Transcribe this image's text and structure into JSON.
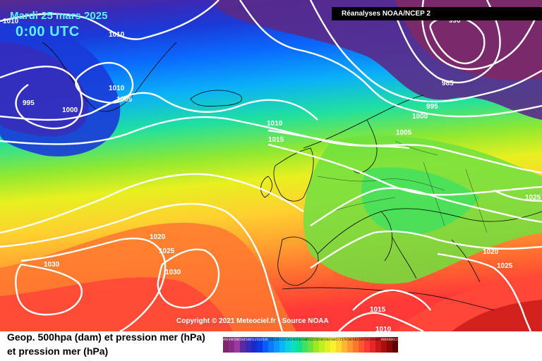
{
  "header": {
    "date": "Mardi 25 mars 2025",
    "time": "0:00 UTC",
    "source_banner": "Réanalyses NOAA/NCEP 2"
  },
  "footer": {
    "copyright": "Copyright © 2021 Meteociel.fr - Source NOAA",
    "title_line1": "Geop. 500hpa (dam) et pression mer (hPa)",
    "title_line2": "et pression mer (hPa)"
  },
  "isobar_labels": [
    "1010",
    "1010",
    "995",
    "1000",
    "1010",
    "1005",
    "990",
    "985",
    "995",
    "1000",
    "1010",
    "1015",
    "1005",
    "1025",
    "1020",
    "1025",
    "1030",
    "1030",
    "1020",
    "1025",
    "1015",
    "1010"
  ],
  "color_scale": {
    "labels": [
      "492",
      "496",
      "500",
      "504",
      "508",
      "512",
      "516",
      "520",
      "524",
      "528",
      "532",
      "536",
      "540",
      "544",
      "548",
      "552",
      "556",
      "560",
      "564",
      "568",
      "572",
      "576",
      "580",
      "584",
      "588",
      "592",
      "596",
      "600",
      "604",
      "608",
      "612"
    ],
    "colors": [
      "#7a2a6a",
      "#8a2a8a",
      "#9a3aa0",
      "#5a2aa0",
      "#3a2ab8",
      "#1a2ad0",
      "#0a3ae8",
      "#0a5aff",
      "#0a7aff",
      "#0a9aff",
      "#0ab8f8",
      "#0ad0e0",
      "#0ae0c0",
      "#10e090",
      "#40e060",
      "#70e040",
      "#a0e820",
      "#c0f020",
      "#e0f020",
      "#fff030",
      "#ffd830",
      "#ffb830",
      "#ff9830",
      "#ff7830",
      "#ff5830",
      "#ff3838",
      "#e82828",
      "#c81818",
      "#a81010",
      "#880808",
      "#600000"
    ]
  }
}
